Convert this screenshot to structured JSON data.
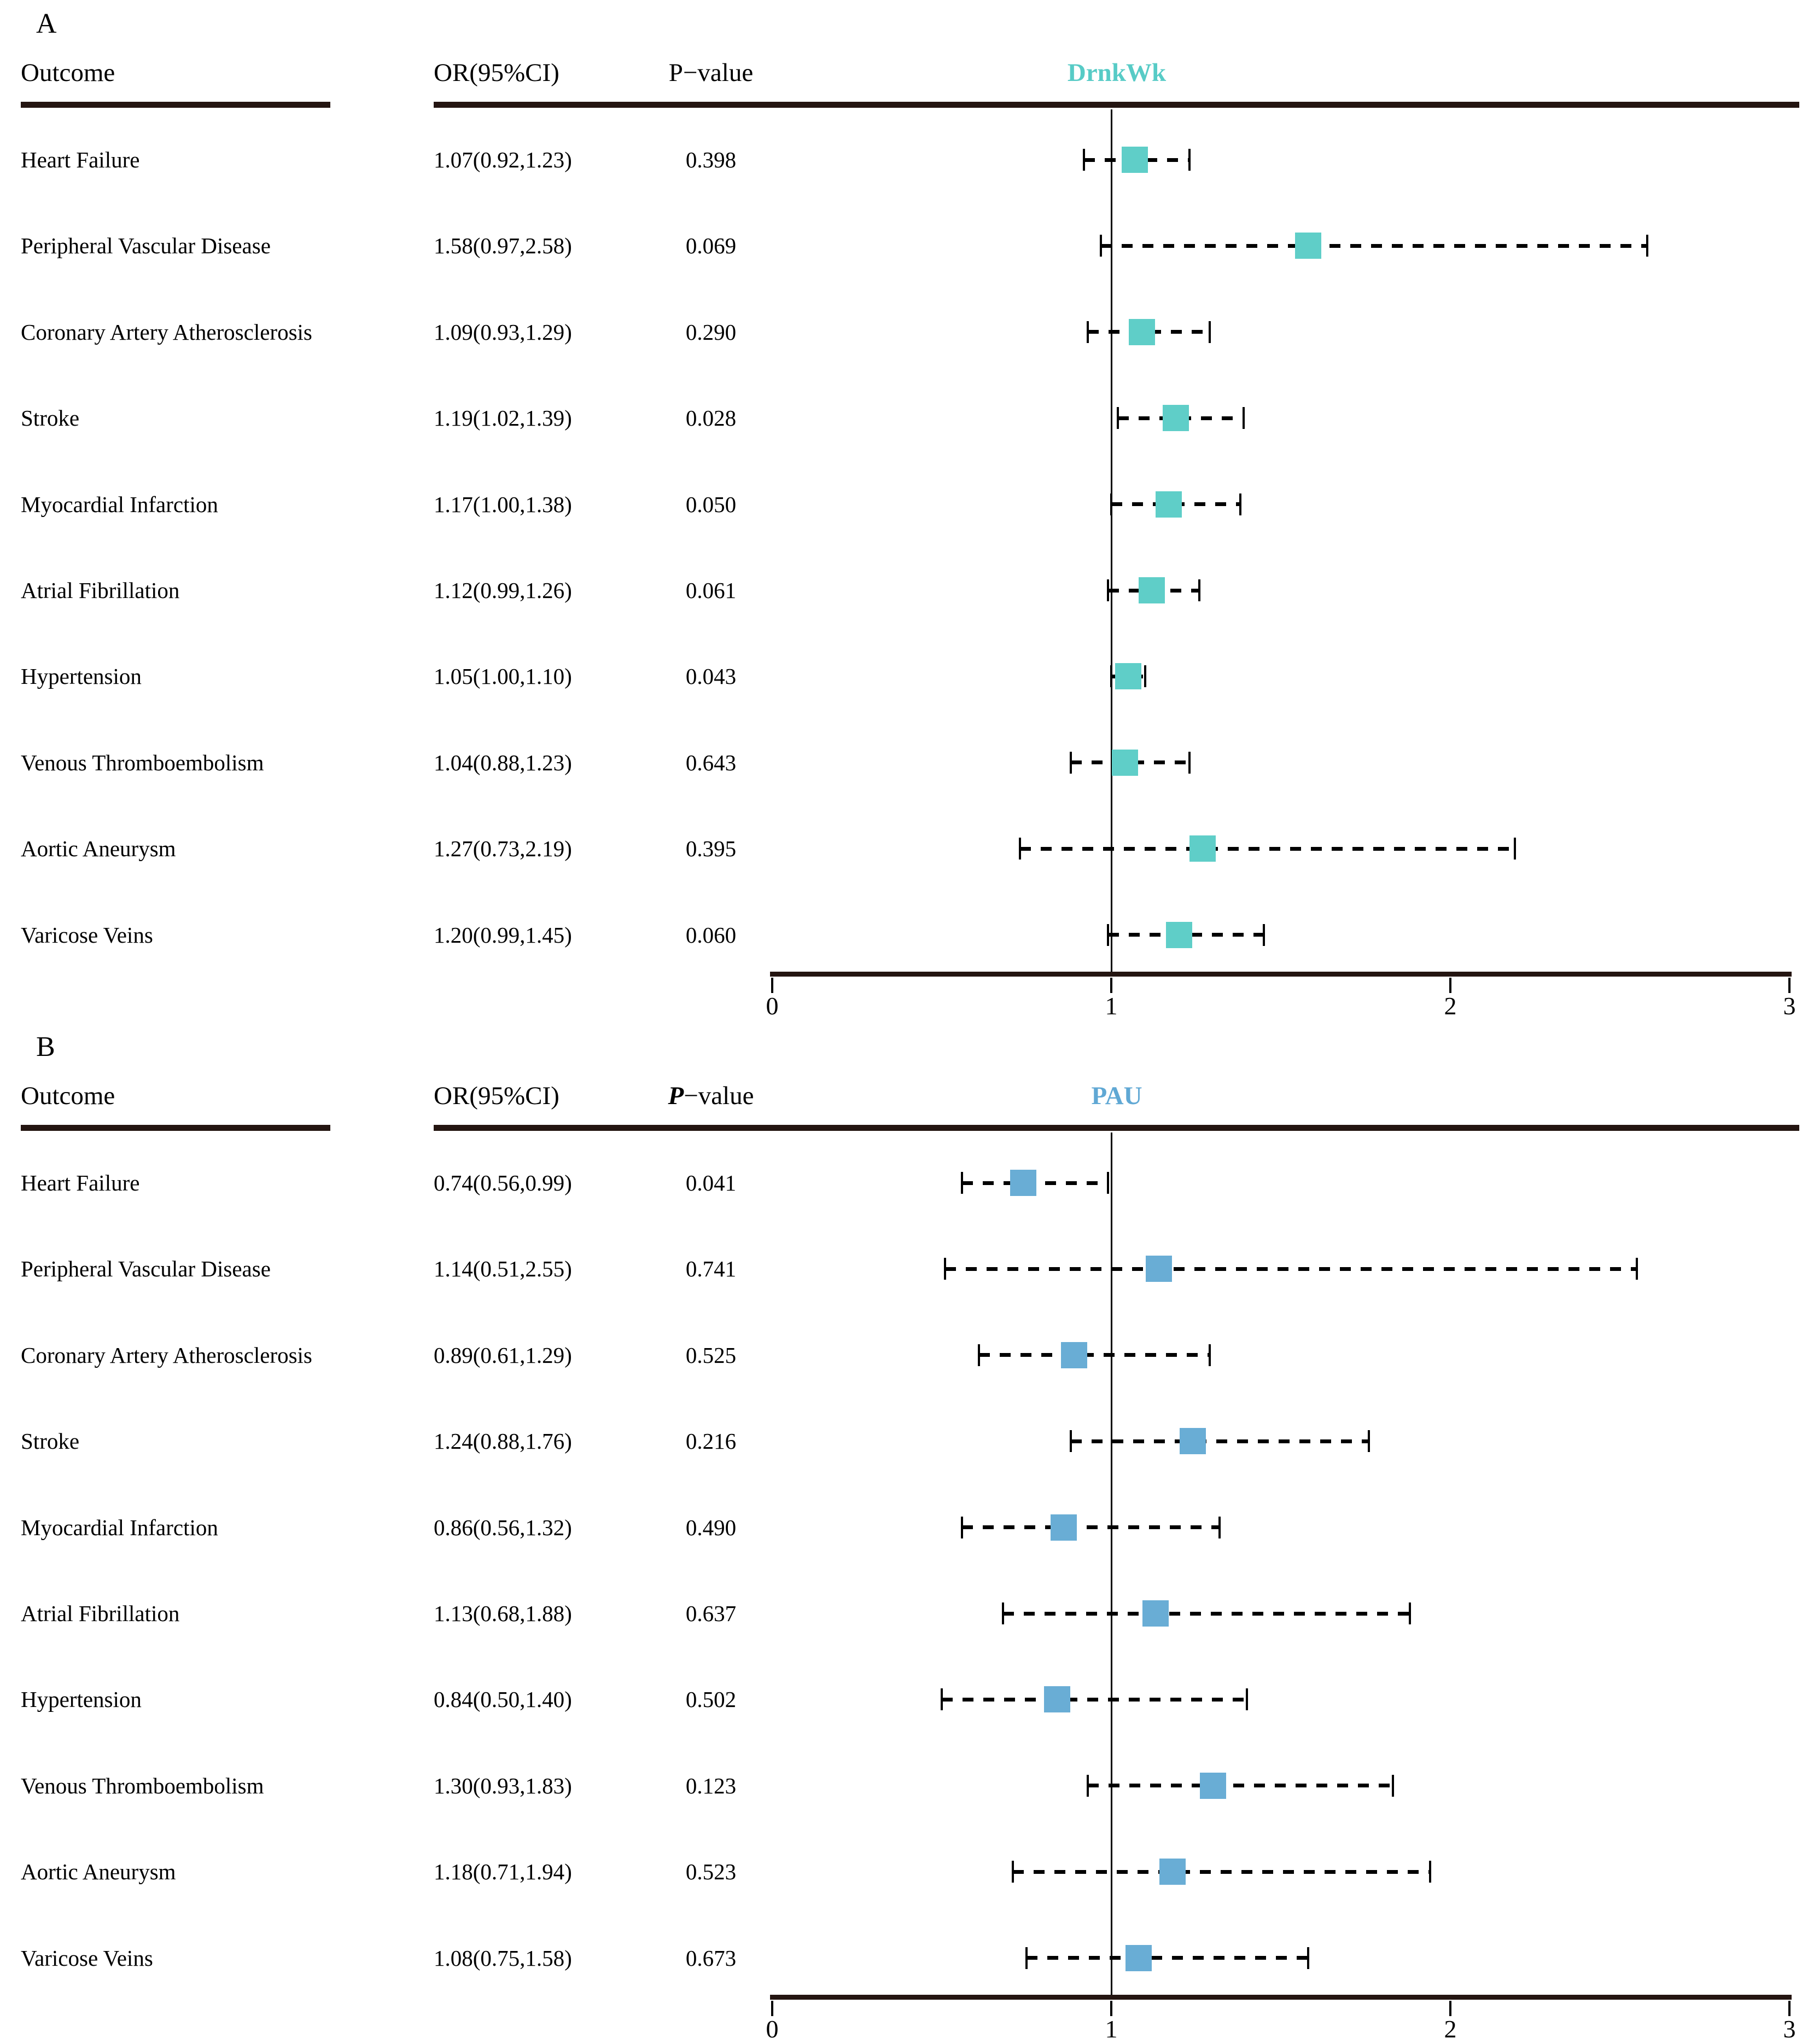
{
  "figure": {
    "background": "#ffffff"
  },
  "chart_data": [
    {
      "type": "forest",
      "panel_label": "A",
      "exposure_title": "DrnkWk",
      "exposure_title_color": "#57CBC6",
      "marker_color": "#5FCEC8",
      "p_header_italic": false,
      "columns": {
        "outcome": "Outcome",
        "or_ci": "OR(95%CI)",
        "p": "P−value"
      },
      "xlabel": "",
      "xlim": [
        0,
        3
      ],
      "xticks": [
        "0",
        "1",
        "2",
        "3"
      ],
      "ref_line": 1,
      "rows": [
        {
          "outcome": "Heart Failure",
          "or_ci": "1.07(0.92,1.23)",
          "p": "0.398",
          "or": 1.07,
          "lo": 0.92,
          "hi": 1.23
        },
        {
          "outcome": "Peripheral Vascular Disease",
          "or_ci": "1.58(0.97,2.58)",
          "p": "0.069",
          "or": 1.58,
          "lo": 0.97,
          "hi": 2.58
        },
        {
          "outcome": "Coronary Artery Atherosclerosis",
          "or_ci": "1.09(0.93,1.29)",
          "p": "0.290",
          "or": 1.09,
          "lo": 0.93,
          "hi": 1.29
        },
        {
          "outcome": "Stroke",
          "or_ci": "1.19(1.02,1.39)",
          "p": "0.028",
          "or": 1.19,
          "lo": 1.02,
          "hi": 1.39
        },
        {
          "outcome": "Myocardial Infarction",
          "or_ci": "1.17(1.00,1.38)",
          "p": "0.050",
          "or": 1.17,
          "lo": 1.0,
          "hi": 1.38
        },
        {
          "outcome": "Atrial Fibrillation",
          "or_ci": "1.12(0.99,1.26)",
          "p": "0.061",
          "or": 1.12,
          "lo": 0.99,
          "hi": 1.26
        },
        {
          "outcome": "Hypertension",
          "or_ci": "1.05(1.00,1.10)",
          "p": "0.043",
          "or": 1.05,
          "lo": 1.0,
          "hi": 1.1
        },
        {
          "outcome": "Venous Thromboembolism",
          "or_ci": "1.04(0.88,1.23)",
          "p": "0.643",
          "or": 1.04,
          "lo": 0.88,
          "hi": 1.23
        },
        {
          "outcome": "Aortic Aneurysm",
          "or_ci": "1.27(0.73,2.19)",
          "p": "0.395",
          "or": 1.27,
          "lo": 0.73,
          "hi": 2.19
        },
        {
          "outcome": "Varicose Veins",
          "or_ci": "1.20(0.99,1.45)",
          "p": "0.060",
          "or": 1.2,
          "lo": 0.99,
          "hi": 1.45
        }
      ]
    },
    {
      "type": "forest",
      "panel_label": "B",
      "exposure_title": "PAU",
      "exposure_title_color": "#60A8D4",
      "marker_color": "#69ADD5",
      "p_header_italic": true,
      "columns": {
        "outcome": "Outcome",
        "or_ci": "OR(95%CI)",
        "p": "P−value"
      },
      "xlabel": "",
      "xlim": [
        0,
        3
      ],
      "xticks": [
        "0",
        "1",
        "2",
        "3"
      ],
      "ref_line": 1,
      "rows": [
        {
          "outcome": "Heart Failure",
          "or_ci": "0.74(0.56,0.99)",
          "p": "0.041",
          "or": 0.74,
          "lo": 0.56,
          "hi": 0.99
        },
        {
          "outcome": "Peripheral Vascular Disease",
          "or_ci": "1.14(0.51,2.55)",
          "p": "0.741",
          "or": 1.14,
          "lo": 0.51,
          "hi": 2.55
        },
        {
          "outcome": "Coronary Artery Atherosclerosis",
          "or_ci": "0.89(0.61,1.29)",
          "p": "0.525",
          "or": 0.89,
          "lo": 0.61,
          "hi": 1.29
        },
        {
          "outcome": "Stroke",
          "or_ci": "1.24(0.88,1.76)",
          "p": "0.216",
          "or": 1.24,
          "lo": 0.88,
          "hi": 1.76
        },
        {
          "outcome": "Myocardial Infarction",
          "or_ci": "0.86(0.56,1.32)",
          "p": "0.490",
          "or": 0.86,
          "lo": 0.56,
          "hi": 1.32
        },
        {
          "outcome": "Atrial Fibrillation",
          "or_ci": "1.13(0.68,1.88)",
          "p": "0.637",
          "or": 1.13,
          "lo": 0.68,
          "hi": 1.88
        },
        {
          "outcome": "Hypertension",
          "or_ci": "0.84(0.50,1.40)",
          "p": "0.502",
          "or": 0.84,
          "lo": 0.5,
          "hi": 1.4
        },
        {
          "outcome": "Venous Thromboembolism",
          "or_ci": "1.30(0.93,1.83)",
          "p": "0.123",
          "or": 1.3,
          "lo": 0.93,
          "hi": 1.83
        },
        {
          "outcome": "Aortic Aneurysm",
          "or_ci": "1.18(0.71,1.94)",
          "p": "0.523",
          "or": 1.18,
          "lo": 0.71,
          "hi": 1.94
        },
        {
          "outcome": "Varicose Veins",
          "or_ci": "1.08(0.75,1.58)",
          "p": "0.673",
          "or": 1.08,
          "lo": 0.75,
          "hi": 1.58
        }
      ]
    }
  ]
}
